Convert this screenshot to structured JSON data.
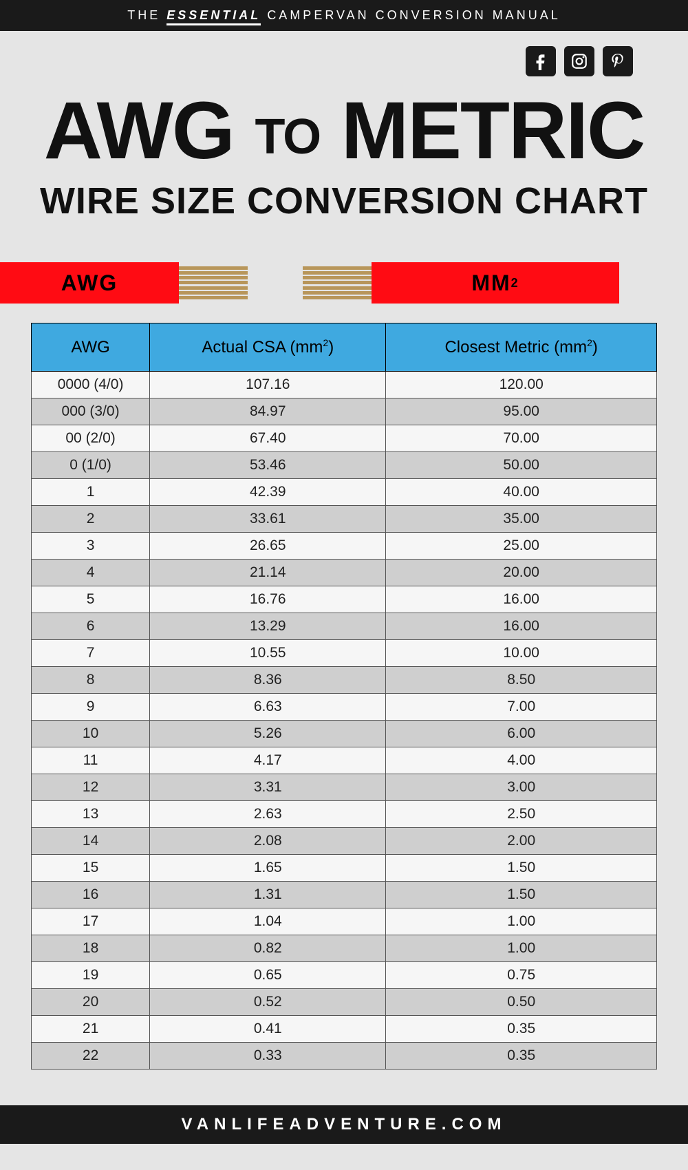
{
  "header": {
    "prefix": "THE",
    "essential": "ESSENTIAL",
    "suffix": "CAMPERVAN CONVERSION MANUAL"
  },
  "social": [
    "facebook",
    "instagram",
    "pinterest"
  ],
  "title": {
    "word1": "AWG",
    "connector": "TO",
    "word2": "METRIC",
    "subtitle": "WIRE SIZE CONVERSION CHART"
  },
  "wire": {
    "left": "AWG",
    "right_base": "MM",
    "right_sup": "2",
    "insulation_color": "#ff0b13",
    "strand_color": "#b8965a"
  },
  "table": {
    "header_bg": "#3fa9e0",
    "row_odd_bg": "#f6f6f6",
    "row_even_bg": "#cfcfcf",
    "columns": [
      {
        "label": "AWG",
        "sup": ""
      },
      {
        "label": "Actual CSA (mm",
        "sup": "2",
        "close": ")"
      },
      {
        "label": "Closest Metric (mm",
        "sup": "2",
        "close": ")"
      }
    ],
    "rows": [
      [
        "0000 (4/0)",
        "107.16",
        "120.00"
      ],
      [
        "000 (3/0)",
        "84.97",
        "95.00"
      ],
      [
        "00 (2/0)",
        "67.40",
        "70.00"
      ],
      [
        "0 (1/0)",
        "53.46",
        "50.00"
      ],
      [
        "1",
        "42.39",
        "40.00"
      ],
      [
        "2",
        "33.61",
        "35.00"
      ],
      [
        "3",
        "26.65",
        "25.00"
      ],
      [
        "4",
        "21.14",
        "20.00"
      ],
      [
        "5",
        "16.76",
        "16.00"
      ],
      [
        "6",
        "13.29",
        "16.00"
      ],
      [
        "7",
        "10.55",
        "10.00"
      ],
      [
        "8",
        "8.36",
        "8.50"
      ],
      [
        "9",
        "6.63",
        "7.00"
      ],
      [
        "10",
        "5.26",
        "6.00"
      ],
      [
        "11",
        "4.17",
        "4.00"
      ],
      [
        "12",
        "3.31",
        "3.00"
      ],
      [
        "13",
        "2.63",
        "2.50"
      ],
      [
        "14",
        "2.08",
        "2.00"
      ],
      [
        "15",
        "1.65",
        "1.50"
      ],
      [
        "16",
        "1.31",
        "1.50"
      ],
      [
        "17",
        "1.04",
        "1.00"
      ],
      [
        "18",
        "0.82",
        "1.00"
      ],
      [
        "19",
        "0.65",
        "0.75"
      ],
      [
        "20",
        "0.52",
        "0.50"
      ],
      [
        "21",
        "0.41",
        "0.35"
      ],
      [
        "22",
        "0.33",
        "0.35"
      ]
    ]
  },
  "footer": "VANLIFEADVENTURE.COM"
}
